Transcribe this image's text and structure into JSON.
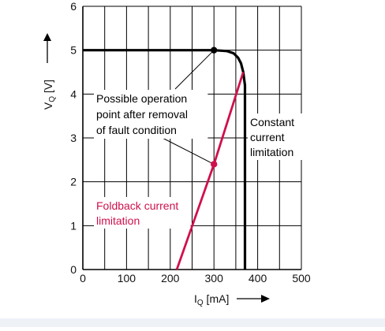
{
  "chart_data": {
    "type": "line",
    "xlabel": "I",
    "xlabel_sub": "Q",
    "xlabel_unit": "[mA]",
    "ylabel": "V",
    "ylabel_sub": "Q",
    "ylabel_unit": "[V]",
    "xlim": [
      0,
      500
    ],
    "ylim": [
      0,
      6
    ],
    "xticks": [
      0,
      100,
      200,
      300,
      400,
      500
    ],
    "yticks": [
      0,
      1,
      2,
      3,
      4,
      5,
      6
    ],
    "x_gridlines": [
      0,
      50,
      100,
      150,
      200,
      250,
      300,
      350,
      400,
      450,
      500
    ],
    "grid": true,
    "series": [
      {
        "key": "constant",
        "color": "#000000",
        "points": [
          [
            0,
            5
          ],
          [
            300,
            5
          ],
          [
            330,
            4.98
          ],
          [
            345,
            4.93
          ],
          [
            355,
            4.83
          ],
          [
            362,
            4.7
          ],
          [
            367,
            4.5
          ],
          [
            371,
            4.2
          ],
          [
            371,
            0
          ]
        ]
      },
      {
        "key": "foldback",
        "color": "#d0104c",
        "points": [
          [
            215,
            0
          ],
          [
            300,
            2.4
          ],
          [
            367,
            4.5
          ]
        ]
      }
    ],
    "markers": [
      {
        "x": 300,
        "y": 5,
        "color": "#000000"
      },
      {
        "x": 300,
        "y": 2.4,
        "color": "#d0104c"
      }
    ],
    "annotations": [
      {
        "key": "possible-operation",
        "lines": [
          "Possible operation",
          "point after removal",
          "of fault condition"
        ],
        "color": "#000000",
        "leaders": [
          [
            300,
            5
          ],
          [
            300,
            2.4
          ]
        ]
      },
      {
        "key": "constant-current",
        "lines": [
          "Constant",
          "current",
          "limitation"
        ],
        "color": "#000000"
      },
      {
        "key": "foldback-current",
        "lines": [
          "Foldback current",
          "limitation"
        ],
        "color": "#d0104c"
      }
    ]
  }
}
